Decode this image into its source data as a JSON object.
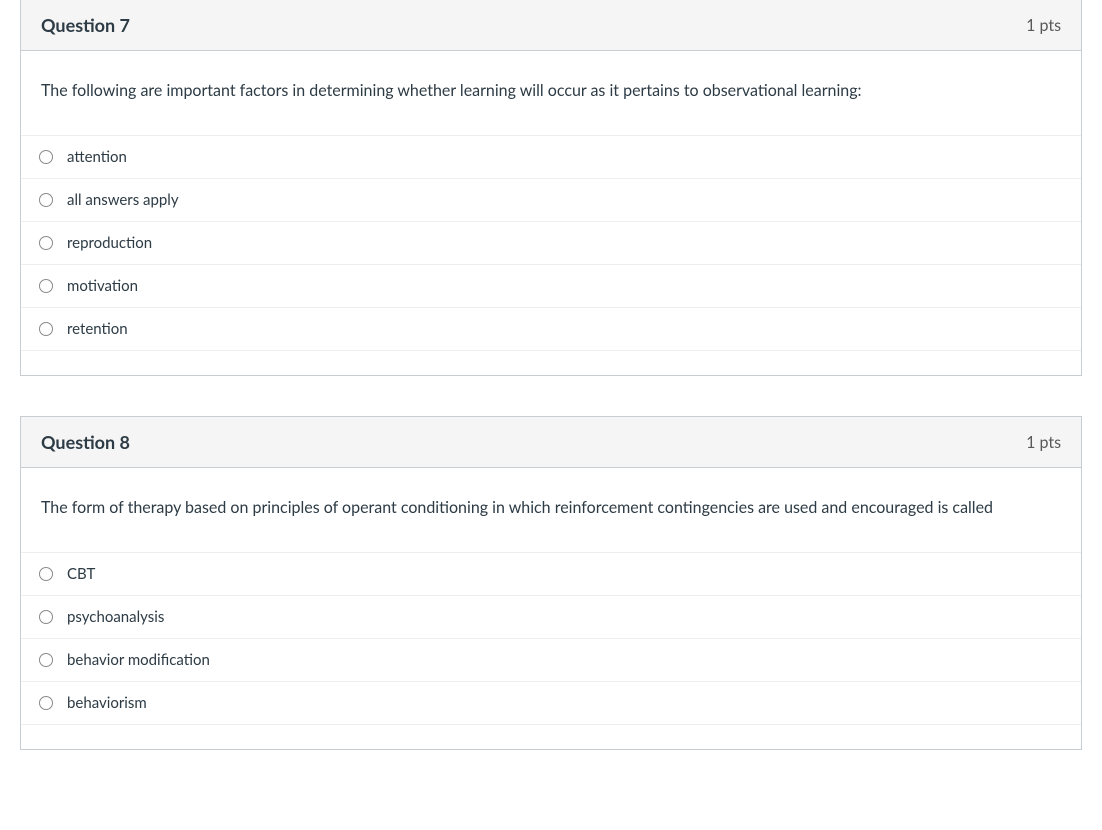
{
  "questions": [
    {
      "title": "Question 7",
      "points": "1 pts",
      "prompt": "The following are important factors in determining whether learning will occur as it pertains to observational learning:",
      "options": [
        "attention",
        "all answers apply",
        "reproduction",
        "motivation",
        "retention"
      ]
    },
    {
      "title": "Question 8",
      "points": "1 pts",
      "prompt": "The form of therapy based on principles of operant conditioning in which reinforcement contingencies are used and encouraged is called",
      "options": [
        "CBT",
        "psychoanalysis",
        "behavior modification",
        "behaviorism"
      ]
    }
  ],
  "colors": {
    "border": "#c7cdd1",
    "header_bg": "#f5f5f5",
    "text": "#2d3b45",
    "pts_text": "#595959",
    "row_border": "#eeeeee",
    "radio_border": "#8a8a8a"
  }
}
